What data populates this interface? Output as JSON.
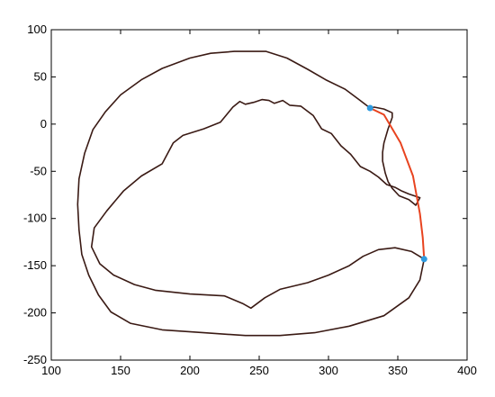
{
  "chart_data": {
    "type": "line",
    "title": "",
    "xlabel": "",
    "ylabel": "",
    "xlim": [
      100,
      400
    ],
    "ylim": [
      -250,
      100
    ],
    "xticks": [
      100,
      150,
      200,
      250,
      300,
      350,
      400
    ],
    "yticks": [
      100,
      50,
      0,
      -50,
      -100,
      -150,
      -200,
      -250
    ],
    "grid": false,
    "series": [
      {
        "color": "#3a1a14",
        "points": [
          [
            330,
            17
          ],
          [
            322,
            26
          ],
          [
            312,
            37
          ],
          [
            298,
            47
          ],
          [
            285,
            58
          ],
          [
            270,
            70
          ],
          [
            255,
            77
          ],
          [
            232,
            77
          ],
          [
            215,
            75
          ],
          [
            200,
            70
          ],
          [
            180,
            59
          ],
          [
            165,
            47
          ],
          [
            150,
            31
          ],
          [
            139,
            13
          ],
          [
            130,
            -6
          ],
          [
            124,
            -31
          ],
          [
            120,
            -58
          ],
          [
            119,
            -85
          ],
          [
            120,
            -112
          ],
          [
            122,
            -138
          ],
          [
            127,
            -160
          ],
          [
            134,
            -181
          ],
          [
            143,
            -199
          ],
          [
            157,
            -211
          ],
          [
            180,
            -218
          ],
          [
            210,
            -221
          ],
          [
            240,
            -224
          ],
          [
            265,
            -224
          ],
          [
            290,
            -221
          ],
          [
            315,
            -214
          ],
          [
            340,
            -203
          ],
          [
            358,
            -184
          ],
          [
            366,
            -165
          ],
          [
            369,
            -143
          ],
          [
            360,
            -135
          ],
          [
            348,
            -131
          ],
          [
            336,
            -133
          ],
          [
            325,
            -140
          ],
          [
            315,
            -150
          ],
          [
            300,
            -160
          ],
          [
            285,
            -168
          ],
          [
            265,
            -175
          ],
          [
            254,
            -184
          ],
          [
            244,
            -195
          ],
          [
            238,
            -190
          ],
          [
            225,
            -182
          ],
          [
            200,
            -180
          ],
          [
            175,
            -176
          ],
          [
            160,
            -170
          ],
          [
            145,
            -160
          ],
          [
            135,
            -148
          ],
          [
            129,
            -130
          ],
          [
            131,
            -110
          ],
          [
            140,
            -92
          ],
          [
            152,
            -71
          ],
          [
            165,
            -55
          ],
          [
            180,
            -42
          ],
          [
            188,
            -20
          ],
          [
            195,
            -12
          ],
          [
            210,
            -5
          ],
          [
            222,
            2
          ],
          [
            231,
            18
          ],
          [
            236,
            24
          ],
          [
            240,
            21
          ],
          [
            246,
            23
          ],
          [
            252,
            26
          ],
          [
            257,
            25
          ],
          [
            261,
            22
          ],
          [
            267,
            25
          ],
          [
            272,
            20
          ],
          [
            280,
            19
          ],
          [
            289,
            9
          ],
          [
            295,
            -5
          ],
          [
            302,
            -10
          ],
          [
            309,
            -23
          ],
          [
            316,
            -32
          ],
          [
            323,
            -45
          ],
          [
            330,
            -50
          ],
          [
            336,
            -56
          ],
          [
            342,
            -64
          ],
          [
            348,
            -67
          ],
          [
            353,
            -71
          ],
          [
            358,
            -74
          ],
          [
            366,
            -78
          ],
          [
            363,
            -86
          ],
          [
            358,
            -80
          ],
          [
            351,
            -76
          ],
          [
            346,
            -68
          ],
          [
            343,
            -61
          ],
          [
            341,
            -52
          ],
          [
            339,
            -39
          ],
          [
            339,
            -30
          ],
          [
            340,
            -20
          ],
          [
            343,
            -5
          ],
          [
            346,
            7
          ],
          [
            346,
            12
          ],
          [
            340,
            16
          ],
          [
            333,
            18
          ],
          [
            330,
            17
          ]
        ]
      },
      {
        "color": "#e8431f",
        "points": [
          [
            330,
            17
          ],
          [
            340,
            10
          ],
          [
            352,
            -20
          ],
          [
            361,
            -55
          ],
          [
            366,
            -95
          ],
          [
            368,
            -120
          ],
          [
            369,
            -143
          ]
        ]
      }
    ],
    "markers": [
      {
        "x": 330,
        "y": 17,
        "color": "#2e9be0"
      },
      {
        "x": 369,
        "y": -143,
        "color": "#2e9be0"
      }
    ]
  }
}
